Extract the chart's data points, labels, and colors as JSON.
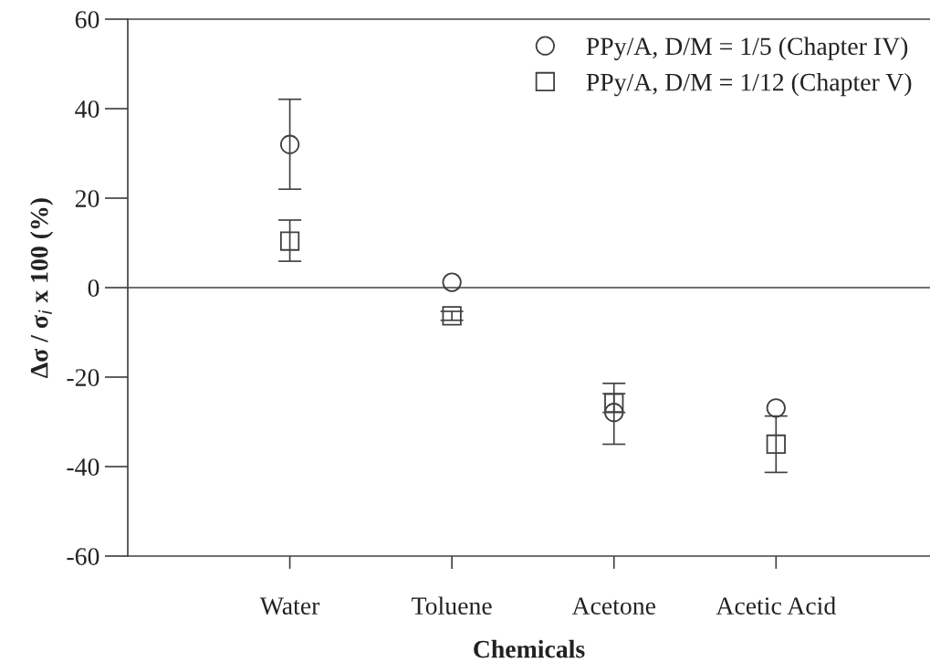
{
  "chart_data": {
    "type": "scatter",
    "xlabel": "Chemicals",
    "ylabel": "Δσ / σ$_{i}$ x 100 (%)",
    "categories": [
      "Water",
      "Toluene",
      "Acetone",
      "Acetic Acid"
    ],
    "ylim": [
      -60,
      60
    ],
    "yticks": [
      -60,
      -40,
      -20,
      0,
      20,
      40,
      60
    ],
    "grid": false,
    "legend": "top right",
    "ref_lines": [
      {
        "axis": "y",
        "value": 0,
        "color": "#404040"
      }
    ],
    "series": [
      {
        "name": "PPy/A, D/M = 1/5 (Chapter IV)",
        "color": "#404040",
        "marker": "circle",
        "values": [
          32,
          1.2,
          -27.9,
          -26.9
        ],
        "errors": [
          [
            22,
            42.1
          ],
          null,
          [
            -35,
            -21.4
          ],
          null
        ]
      },
      {
        "name": "PPy/A, D/M = 1/12 (Chapter V)",
        "color": "#404040",
        "marker": "square",
        "values": [
          10.4,
          -6.3,
          -25.8,
          -35
        ],
        "errors": [
          [
            5.9,
            15.1
          ],
          [
            -7.3,
            -5.3
          ],
          [
            -27.9,
            -23.7
          ],
          [
            -41.3,
            -28.7
          ]
        ]
      }
    ]
  }
}
